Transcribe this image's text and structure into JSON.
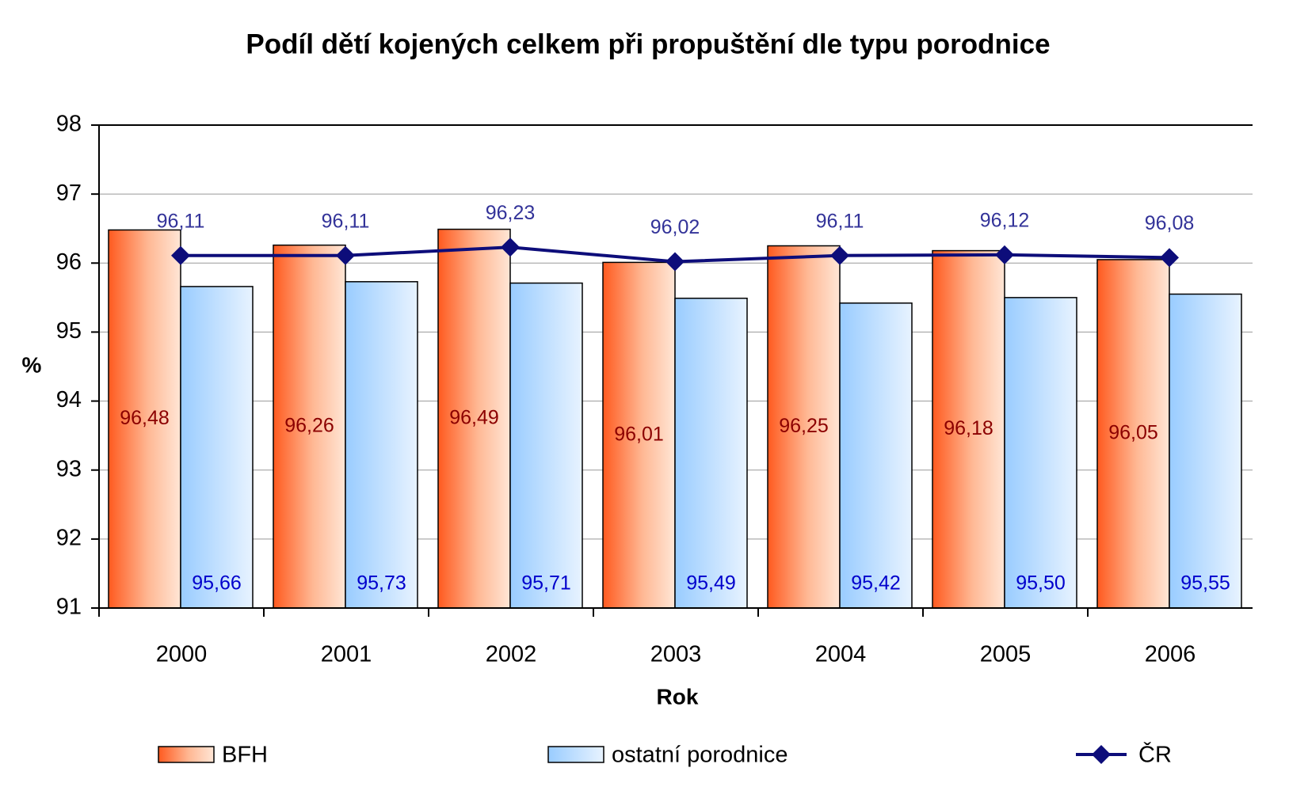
{
  "chart_data": {
    "type": "bar",
    "title": "Podíl dětí kojených celkem při propuštění dle typu porodnice",
    "x_label": "Rok",
    "y_label": "%",
    "categories": [
      "2000",
      "2001",
      "2002",
      "2003",
      "2004",
      "2005",
      "2006"
    ],
    "series": [
      {
        "name": "BFH",
        "type": "bar",
        "color": "#ff5a1f",
        "values": [
          96.48,
          96.26,
          96.49,
          96.01,
          96.25,
          96.18,
          96.05
        ],
        "value_labels": [
          "96,48",
          "96,26",
          "96,49",
          "96,01",
          "96,25",
          "96,18",
          "96,05"
        ]
      },
      {
        "name": "ostatní porodnice",
        "type": "bar",
        "color": "#99ccff",
        "values": [
          95.66,
          95.73,
          95.71,
          95.49,
          95.42,
          95.5,
          95.55
        ],
        "value_labels": [
          "95,66",
          "95,73",
          "95,71",
          "95,49",
          "95,42",
          "95,50",
          "95,55"
        ]
      },
      {
        "name": "ČR",
        "type": "line",
        "color": "#0d0d7a",
        "values": [
          96.11,
          96.11,
          96.23,
          96.02,
          96.11,
          96.12,
          96.08
        ],
        "value_labels": [
          "96,11",
          "96,11",
          "96,23",
          "96,02",
          "96,11",
          "96,12",
          "96,08"
        ]
      }
    ],
    "ylim": [
      91,
      98
    ],
    "yticks": [
      91,
      92,
      93,
      94,
      95,
      96,
      97,
      98
    ],
    "grid": true,
    "legend": "bottom"
  }
}
